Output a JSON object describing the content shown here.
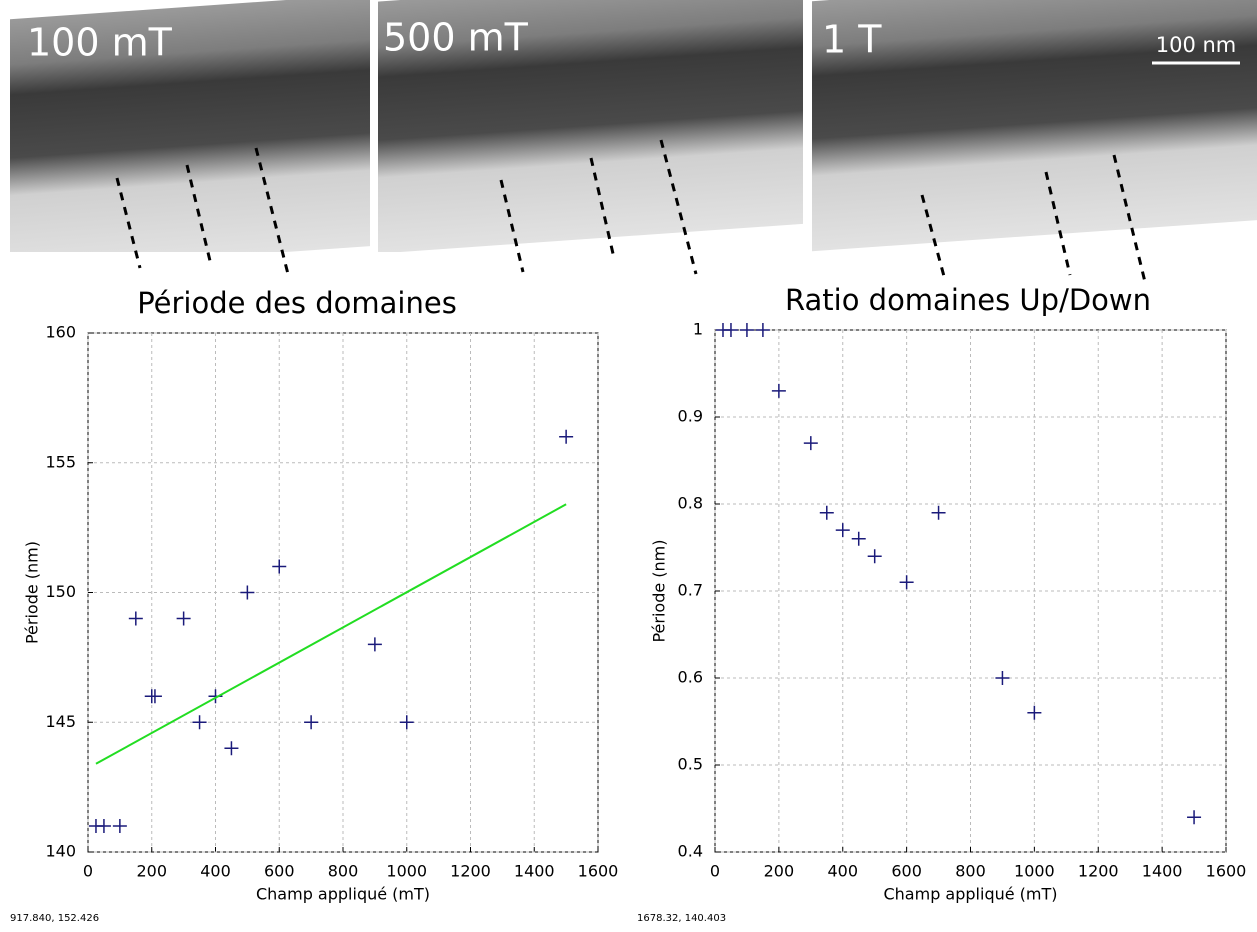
{
  "panels": [
    {
      "label": "100 mT"
    },
    {
      "label": "500 mT"
    },
    {
      "label": "1 T"
    }
  ],
  "scale_bar": "100 nm",
  "chart_data": [
    {
      "type": "scatter",
      "title": "Période des domaines",
      "x_label": "Champ appliqué (mT)",
      "y_label": "Période (nm)",
      "coordinates": "917.840, 152.426",
      "xlim": [
        0,
        1600
      ],
      "ylim": [
        140,
        160
      ],
      "xticks": [
        0,
        200,
        400,
        600,
        800,
        1000,
        1200,
        1400,
        1600
      ],
      "yticks": [
        140,
        145,
        150,
        155,
        160
      ],
      "grid": true,
      "series": [
        {
          "color": "#1a1a7a",
          "mode": "markers",
          "x": [
            25,
            50,
            100,
            150,
            200,
            210,
            300,
            350,
            400,
            450,
            500,
            600,
            700,
            900,
            1000,
            1500
          ],
          "values": [
            141,
            141,
            141,
            149,
            146,
            146,
            149,
            145,
            146,
            144,
            150,
            151,
            145,
            148,
            145,
            156
          ]
        },
        {
          "color": "#22dd22",
          "mode": "line",
          "x": [
            25,
            1500
          ],
          "values": [
            143.4,
            153.4
          ]
        }
      ]
    },
    {
      "type": "scatter",
      "title": "Ratio domaines Up/Down",
      "x_label": "Champ appliqué (mT)",
      "y_label": "Période (nm)",
      "coordinates": "1678.32, 140.403",
      "xlim": [
        0,
        1600
      ],
      "ylim": [
        0.4,
        1
      ],
      "xticks": [
        0,
        200,
        400,
        600,
        800,
        1000,
        1200,
        1400,
        1600
      ],
      "yticks": [
        0.4,
        0.5,
        0.6,
        0.7,
        0.8,
        0.9,
        1
      ],
      "grid": true,
      "series": [
        {
          "color": "#1a1a7a",
          "mode": "markers",
          "x": [
            25,
            50,
            100,
            150,
            200,
            300,
            350,
            400,
            450,
            500,
            600,
            700,
            900,
            1000,
            1500
          ],
          "values": [
            1,
            1,
            1,
            1,
            0.93,
            0.87,
            0.79,
            0.77,
            0.76,
            0.74,
            0.71,
            0.79,
            0.6,
            0.56,
            0.44
          ]
        }
      ]
    }
  ]
}
